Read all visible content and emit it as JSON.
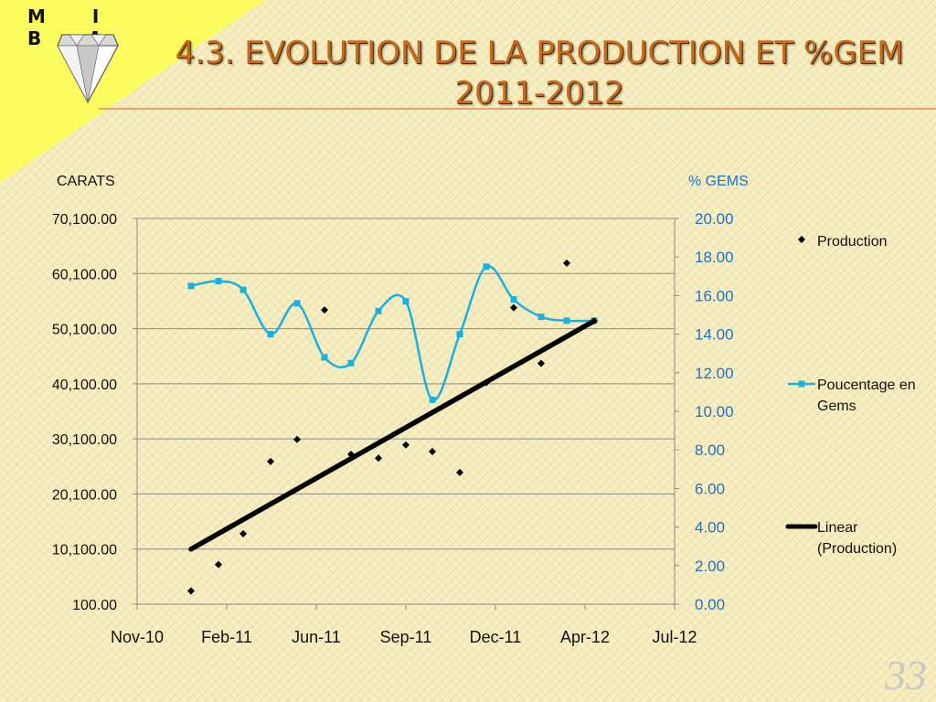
{
  "logo": {
    "text": "M I B A"
  },
  "title": {
    "line1": "4.3. Evolution de la production et  %GEM",
    "line2": "2011-2012"
  },
  "page_number": "33",
  "colors": {
    "title": "#c8691c",
    "corner": "#fcfc60",
    "gems_series": "#1ab0e0",
    "production_series": "#000000",
    "trend": "#000000",
    "right_axis_text": "#1a73c8"
  },
  "chart_data": {
    "type": "scatter",
    "left_axis_label": "CARATS",
    "right_axis_label": "%  GEMS",
    "xlim": [
      "2010-11-01",
      "2012-07-01"
    ],
    "x_tick_labels": [
      "Nov-10",
      "Feb-11",
      "Jun-11",
      "Sep-11",
      "Dec-11",
      "Apr-12",
      "Jul-12"
    ],
    "y_left_lim": [
      100,
      70100
    ],
    "y_left_ticks": [
      "100.00",
      "10,100.00",
      "20,100.00",
      "30,100.00",
      "40,100.00",
      "50,100.00",
      "60,100.00",
      "70,100.00"
    ],
    "y_right_lim": [
      0,
      20
    ],
    "y_right_ticks": [
      "0.00",
      "2.00",
      "4.00",
      "6.00",
      "8.00",
      "10.00",
      "12.00",
      "14.00",
      "16.00",
      "18.00",
      "20.00"
    ],
    "grid": "horizontal",
    "legend_position": "right",
    "series": [
      {
        "name": "Production",
        "axis": "left",
        "type": "scatter",
        "marker": "diamond",
        "x": [
          "2011-01-01",
          "2011-02-01",
          "2011-03-01",
          "2011-04-01",
          "2011-05-01",
          "2011-06-01",
          "2011-07-01",
          "2011-08-01",
          "2011-09-01",
          "2011-10-01",
          "2011-11-01",
          "2011-12-01",
          "2012-01-01",
          "2012-02-01",
          "2012-03-01",
          "2012-04-01"
        ],
        "values": [
          2500,
          7300,
          12900,
          26000,
          30000,
          53500,
          27300,
          26600,
          29000,
          27800,
          24000,
          40300,
          53900,
          43800,
          62000,
          51500
        ]
      },
      {
        "name": "Poucentage en Gems",
        "axis": "right",
        "type": "line",
        "marker": "square",
        "x": [
          "2011-01-01",
          "2011-02-01",
          "2011-03-01",
          "2011-04-01",
          "2011-05-01",
          "2011-06-01",
          "2011-07-01",
          "2011-08-01",
          "2011-09-01",
          "2011-10-01",
          "2011-11-01",
          "2011-12-01",
          "2012-01-01",
          "2012-02-01",
          "2012-03-01",
          "2012-04-01"
        ],
        "values": [
          16.5,
          16.75,
          16.3,
          14.0,
          15.6,
          12.8,
          12.5,
          15.2,
          15.7,
          10.6,
          14.0,
          17.5,
          15.8,
          14.9,
          14.7,
          14.7
        ]
      },
      {
        "name": "Linear (Production)",
        "axis": "left",
        "type": "trendline",
        "x": [
          "2011-01-01",
          "2012-04-01"
        ],
        "values": [
          10100,
          51500
        ]
      }
    ]
  }
}
